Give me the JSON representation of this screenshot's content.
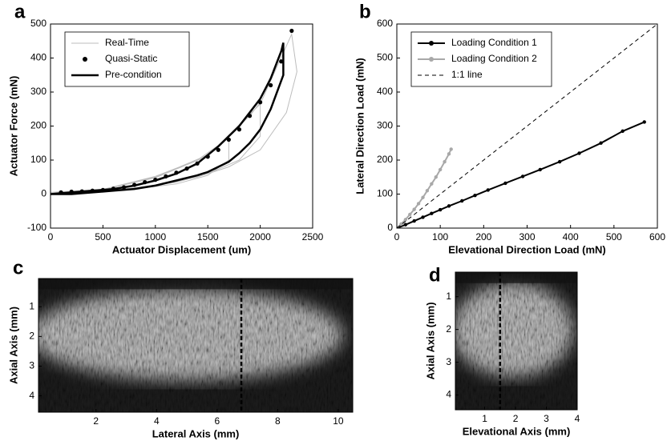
{
  "chart_data": [
    {
      "type": "line",
      "label": "a",
      "xlabel": "Actuator Displacement (um)",
      "ylabel": "Actuator Force (mN)",
      "xlim": [
        0,
        2500
      ],
      "ylim": [
        -100,
        500
      ],
      "xticks": [
        0,
        500,
        1000,
        1500,
        2000,
        2500
      ],
      "yticks": [
        -100,
        0,
        100,
        200,
        300,
        400,
        500
      ],
      "legend": "upper-left",
      "series": [
        {
          "name": "Real-Time",
          "color": "#bdbdbd",
          "line_width": 1,
          "marker": false,
          "x": [
            0,
            500,
            1000,
            1400,
            1700,
            1700,
            1500,
            1200,
            800,
            400,
            0,
            null,
            0,
            500,
            1000,
            1500,
            1900,
            2000,
            2000,
            1800,
            1500,
            1200,
            800,
            400,
            0,
            null,
            0,
            500,
            1000,
            1500,
            2000,
            2300,
            2350,
            2250,
            2000,
            1700,
            1400,
            1000,
            600,
            0
          ],
          "values": [
            5,
            14,
            52,
            100,
            165,
            100,
            55,
            30,
            15,
            5,
            5,
            null,
            5,
            14,
            50,
            115,
            230,
            270,
            170,
            100,
            60,
            35,
            18,
            7,
            5,
            null,
            5,
            13,
            48,
            112,
            265,
            470,
            360,
            240,
            130,
            80,
            50,
            25,
            10,
            5
          ]
        },
        {
          "name": "Quasi-Static",
          "color": "#000000",
          "line_width": 0,
          "marker": true,
          "x": [
            100,
            200,
            300,
            400,
            500,
            600,
            700,
            800,
            900,
            1000,
            1100,
            1200,
            1300,
            1400,
            1500,
            1600,
            1700,
            1800,
            1900,
            2000,
            2100,
            2200,
            2300
          ],
          "values": [
            5,
            7,
            8,
            10,
            12,
            16,
            20,
            27,
            35,
            42,
            52,
            63,
            75,
            90,
            110,
            130,
            160,
            190,
            230,
            270,
            320,
            390,
            480
          ]
        },
        {
          "name": "Pre-condition",
          "color": "#000000",
          "line_width": 2.5,
          "marker": false,
          "x": [
            0,
            200,
            400,
            600,
            800,
            1000,
            1200,
            1400,
            1600,
            1800,
            2000,
            2100,
            2200,
            2220,
            2220,
            2100,
            2000,
            1900,
            1800,
            1700,
            1600,
            1500,
            1400,
            1200,
            1000,
            800,
            600,
            400,
            200,
            0
          ],
          "values": [
            0,
            5,
            10,
            15,
            25,
            40,
            60,
            90,
            140,
            200,
            280,
            340,
            420,
            445,
            350,
            250,
            190,
            150,
            120,
            95,
            80,
            65,
            55,
            40,
            25,
            15,
            10,
            5,
            0,
            0
          ]
        }
      ]
    },
    {
      "type": "line",
      "label": "b",
      "xlabel": "Elevational Direction Load (mN)",
      "ylabel": "Lateral Direction Load (mN)",
      "xlim": [
        0,
        600
      ],
      "ylim": [
        0,
        600
      ],
      "xticks": [
        0,
        100,
        200,
        300,
        400,
        500,
        600
      ],
      "yticks": [
        0,
        100,
        200,
        300,
        400,
        500,
        600
      ],
      "legend": "upper-left",
      "series": [
        {
          "name": "Loading Condition 1",
          "color": "#000000",
          "line_width": 2,
          "marker": true,
          "x": [
            0,
            20,
            40,
            60,
            80,
            100,
            120,
            150,
            180,
            210,
            250,
            290,
            330,
            375,
            420,
            470,
            520,
            570
          ],
          "values": [
            0,
            10,
            21,
            32,
            43,
            54,
            65,
            80,
            96,
            112,
            132,
            152,
            172,
            195,
            220,
            250,
            285,
            312
          ]
        },
        {
          "name": "Loading Condition 2",
          "color": "#a8a8a8",
          "line_width": 2,
          "marker": true,
          "x": [
            0,
            10,
            20,
            30,
            40,
            50,
            60,
            70,
            80,
            90,
            100,
            110,
            120,
            125
          ],
          "values": [
            0,
            12,
            25,
            40,
            55,
            72,
            90,
            110,
            130,
            150,
            172,
            195,
            218,
            232
          ]
        },
        {
          "name": "1:1 line",
          "color": "#000000",
          "line_width": 1,
          "marker": false,
          "dash": true,
          "x": [
            0,
            600
          ],
          "values": [
            0,
            600
          ]
        }
      ]
    },
    {
      "type": "image",
      "label": "c",
      "xlabel": "Lateral Axis (mm)",
      "ylabel": "Axial Axis (mm)",
      "xlim": [
        0.1,
        10.48
      ],
      "ylim": [
        0.05,
        4.55
      ],
      "invert_y": true,
      "xticks": [
        2,
        4,
        6,
        8,
        10
      ],
      "yticks": [
        1,
        2,
        3,
        4
      ],
      "marker_x": 6.8
    },
    {
      "type": "image",
      "label": "d",
      "xlabel": "Elevational Axis (mm)",
      "ylabel": "Axial Axis (mm)",
      "xlim": [
        0.05,
        4.0
      ],
      "ylim": [
        0.25,
        4.45
      ],
      "invert_y": true,
      "xticks": [
        1,
        2,
        3,
        4
      ],
      "yticks": [
        1,
        2,
        3,
        4
      ],
      "marker_x": 1.5
    }
  ]
}
